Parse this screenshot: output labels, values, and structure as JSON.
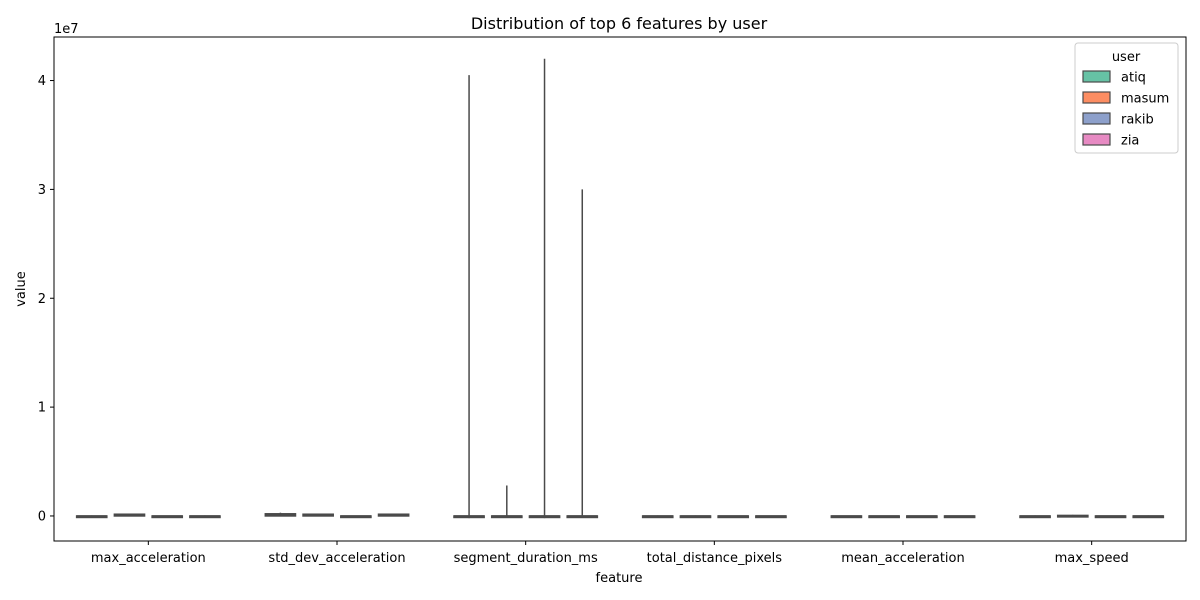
{
  "chart_data": {
    "type": "box",
    "title": "Distribution of top 6 features by user",
    "xlabel": "feature",
    "ylabel": "value",
    "y_scale_label": "1e7",
    "ylim": [
      -2300000,
      44000000
    ],
    "y_ticks": [
      0,
      10000000,
      20000000,
      30000000,
      40000000
    ],
    "y_tick_labels": [
      "0",
      "1",
      "2",
      "3",
      "4"
    ],
    "categories": [
      "max_acceleration",
      "std_dev_acceleration",
      "segment_duration_ms",
      "total_distance_pixels",
      "mean_acceleration",
      "max_speed"
    ],
    "legend": {
      "title": "user",
      "position": "top-right"
    },
    "series": [
      {
        "name": "atiq",
        "color": "#66c2a5",
        "boxes": [
          {
            "q1": 0,
            "median": 0,
            "q3": 0,
            "whislo": 0,
            "whishi": 50000
          },
          {
            "q1": 0,
            "median": 100000,
            "q3": 200000,
            "whislo": 0,
            "whishi": 300000
          },
          {
            "q1": 0,
            "median": 0,
            "q3": 0,
            "whislo": -200000,
            "whishi": 40500000
          },
          {
            "q1": 0,
            "median": 0,
            "q3": 0,
            "whislo": -100000,
            "whishi": 50000
          },
          {
            "q1": 0,
            "median": 0,
            "q3": 0,
            "whislo": 0,
            "whishi": 0
          },
          {
            "q1": 0,
            "median": 0,
            "q3": 0,
            "whislo": -100000,
            "whishi": 50000
          }
        ]
      },
      {
        "name": "masum",
        "color": "#fc8d62",
        "boxes": [
          {
            "q1": 0,
            "median": 80000,
            "q3": 160000,
            "whislo": 0,
            "whishi": 200000
          },
          {
            "q1": 0,
            "median": 80000,
            "q3": 160000,
            "whislo": 0,
            "whishi": 200000
          },
          {
            "q1": 0,
            "median": 0,
            "q3": 0,
            "whislo": 0,
            "whishi": 2800000
          },
          {
            "q1": 0,
            "median": 0,
            "q3": 0,
            "whislo": -100000,
            "whishi": 50000
          },
          {
            "q1": 0,
            "median": 0,
            "q3": 0,
            "whislo": 0,
            "whishi": 0
          },
          {
            "q1": 0,
            "median": 0,
            "q3": 50000,
            "whislo": 0,
            "whishi": 100000
          }
        ]
      },
      {
        "name": "rakib",
        "color": "#8da0cb",
        "boxes": [
          {
            "q1": 0,
            "median": 0,
            "q3": 0,
            "whislo": 0,
            "whishi": 0
          },
          {
            "q1": 0,
            "median": 0,
            "q3": 0,
            "whislo": 0,
            "whishi": 0
          },
          {
            "q1": 0,
            "median": 0,
            "q3": 0,
            "whislo": -200000,
            "whishi": 42000000
          },
          {
            "q1": 0,
            "median": 0,
            "q3": 0,
            "whislo": 0,
            "whishi": 30000
          },
          {
            "q1": 0,
            "median": 0,
            "q3": 0,
            "whislo": 0,
            "whishi": 0
          },
          {
            "q1": 0,
            "median": 0,
            "q3": 0,
            "whislo": 0,
            "whishi": 30000
          }
        ]
      },
      {
        "name": "zia",
        "color": "#e78ac3",
        "boxes": [
          {
            "q1": 0,
            "median": 0,
            "q3": 0,
            "whislo": 0,
            "whishi": 50000
          },
          {
            "q1": 0,
            "median": 80000,
            "q3": 160000,
            "whislo": 0,
            "whishi": 200000
          },
          {
            "q1": 0,
            "median": 0,
            "q3": 0,
            "whislo": -100000,
            "whishi": 30000000
          },
          {
            "q1": 0,
            "median": 0,
            "q3": 0,
            "whislo": 0,
            "whishi": 30000
          },
          {
            "q1": 0,
            "median": 0,
            "q3": 0,
            "whislo": 0,
            "whishi": 0
          },
          {
            "q1": 0,
            "median": 0,
            "q3": 0,
            "whislo": 0,
            "whishi": 50000
          }
        ]
      }
    ]
  }
}
